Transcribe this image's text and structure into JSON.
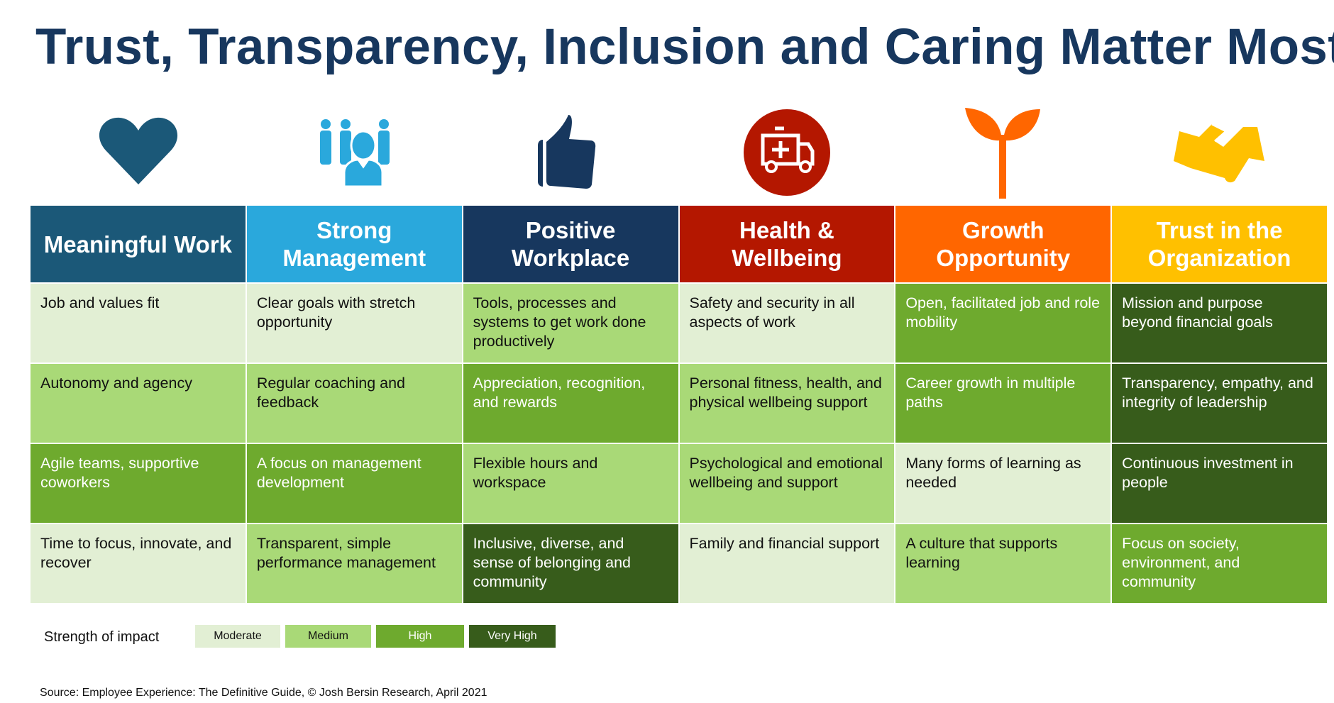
{
  "title": "Trust, Transparency, Inclusion and Caring Matter Most",
  "columns": [
    {
      "header": "Meaningful Work",
      "color": "#1b5878",
      "icon": "heart-icon"
    },
    {
      "header": "Strong Management",
      "color": "#2aa8dc",
      "icon": "team-icon"
    },
    {
      "header": "Positive Workplace",
      "color": "#17375e",
      "icon": "thumbs-up-icon"
    },
    {
      "header": "Health & Wellbeing",
      "color": "#b41700",
      "icon": "ambulance-icon"
    },
    {
      "header": "Growth Opportunity",
      "color": "#ff6600",
      "icon": "sprout-icon"
    },
    {
      "header": "Trust in the Organization",
      "color": "#ffc000",
      "icon": "handshake-icon"
    }
  ],
  "rows": [
    [
      {
        "text": "Job and values fit",
        "level": "moderate"
      },
      {
        "text": "Clear goals with stretch opportunity",
        "level": "moderate"
      },
      {
        "text": "Tools, processes and systems to get work done productively",
        "level": "medium"
      },
      {
        "text": "Safety and security in all aspects of work",
        "level": "moderate"
      },
      {
        "text": "Open, facilitated job and role mobility",
        "level": "high"
      },
      {
        "text": "Mission and purpose beyond financial goals",
        "level": "very_high"
      }
    ],
    [
      {
        "text": "Autonomy and agency",
        "level": "medium"
      },
      {
        "text": "Regular coaching and feedback",
        "level": "medium"
      },
      {
        "text": "Appreciation, recognition, and rewards",
        "level": "high"
      },
      {
        "text": "Personal fitness, health, and physical wellbeing support",
        "level": "medium"
      },
      {
        "text": "Career growth in multiple paths",
        "level": "high"
      },
      {
        "text": "Transparency, empathy, and integrity of leadership",
        "level": "very_high"
      }
    ],
    [
      {
        "text": "Agile teams, supportive coworkers",
        "level": "high"
      },
      {
        "text": "A focus on management development",
        "level": "high"
      },
      {
        "text": "Flexible hours and workspace",
        "level": "medium"
      },
      {
        "text": "Psychological and emotional wellbeing and support",
        "level": "medium"
      },
      {
        "text": "Many forms of learning as needed",
        "level": "moderate"
      },
      {
        "text": "Continuous investment in people",
        "level": "very_high"
      }
    ],
    [
      {
        "text": "Time to focus, innovate, and recover",
        "level": "moderate"
      },
      {
        "text": "Transparent, simple performance management",
        "level": "medium"
      },
      {
        "text": "Inclusive, diverse, and sense of belonging and community",
        "level": "very_high"
      },
      {
        "text": "Family and financial support",
        "level": "moderate"
      },
      {
        "text": "A culture that supports learning",
        "level": "medium"
      },
      {
        "text": "Focus on society, environment, and community",
        "level": "high"
      }
    ]
  ],
  "legend": {
    "label": "Strength of impact",
    "items": [
      {
        "label": "Moderate",
        "level": "moderate",
        "color": "#e2efd4"
      },
      {
        "label": "Medium",
        "level": "medium",
        "color": "#a9d977"
      },
      {
        "label": "High",
        "level": "high",
        "color": "#6eaa2e"
      },
      {
        "label": "Very High",
        "level": "very_high",
        "color": "#375c1b"
      }
    ]
  },
  "source": "Source: Employee Experience: The Definitive Guide, © Josh Bersin Research, April 2021"
}
